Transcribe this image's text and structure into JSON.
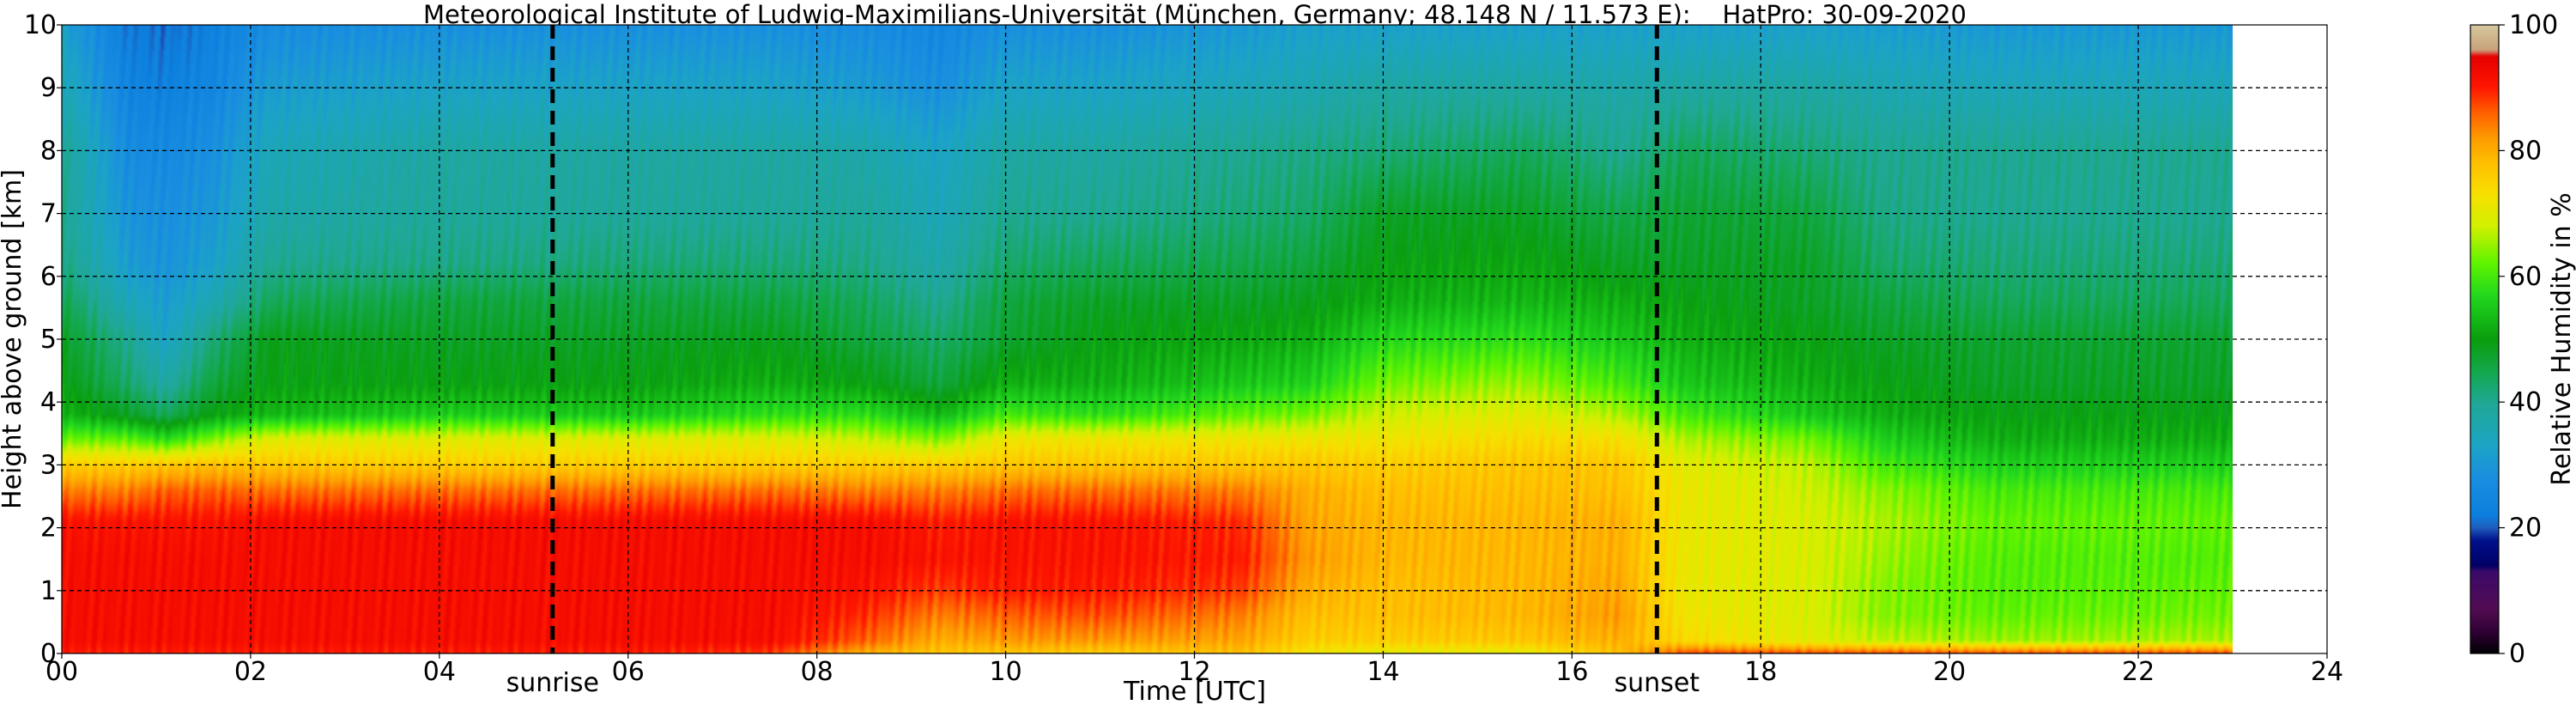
{
  "chart_data": {
    "type": "heatmap",
    "title": "Meteorological Institute of Ludwig-Maximilians-Universität (München, Germany; 48.148 N / 11.573 E):    HatPro: 30-09-2020",
    "xlabel": "Time [UTC]",
    "ylabel": "Height above ground [km]",
    "colorbar_label": "Relative Humidity in %",
    "xlim": [
      0,
      24
    ],
    "ylim": [
      0,
      10
    ],
    "data_xlim": [
      0,
      23
    ],
    "clim": [
      0,
      100
    ],
    "grid": true,
    "x_ticks": [
      "00",
      "02",
      "04",
      "06",
      "08",
      "10",
      "12",
      "14",
      "16",
      "18",
      "20",
      "22",
      "24"
    ],
    "x_tick_values": [
      0,
      2,
      4,
      6,
      8,
      10,
      12,
      14,
      16,
      18,
      20,
      22,
      24
    ],
    "y_ticks": [
      "0",
      "1",
      "2",
      "3",
      "4",
      "5",
      "6",
      "7",
      "8",
      "9",
      "10"
    ],
    "colorbar_ticks": [
      "0",
      "20",
      "40",
      "60",
      "80",
      "100"
    ],
    "colorbar_tick_values": [
      0,
      20,
      40,
      60,
      80,
      100
    ],
    "events": [
      {
        "label": "sunrise",
        "time_utc": 5.2
      },
      {
        "label": "sunset",
        "time_utc": 16.9
      }
    ],
    "colormap": [
      {
        "v": 0,
        "color": "#000000"
      },
      {
        "v": 3,
        "color": "#2a0030"
      },
      {
        "v": 7,
        "color": "#520b52"
      },
      {
        "v": 13,
        "color": "#3c0a6a"
      },
      {
        "v": 14,
        "color": "#000066"
      },
      {
        "v": 18,
        "color": "#00108c"
      },
      {
        "v": 20,
        "color": "#1f5ebd"
      },
      {
        "v": 22,
        "color": "#0c7fde"
      },
      {
        "v": 28,
        "color": "#1a8fe0"
      },
      {
        "v": 33,
        "color": "#1ca4c6"
      },
      {
        "v": 40,
        "color": "#20a895"
      },
      {
        "v": 45,
        "color": "#13a84a"
      },
      {
        "v": 50,
        "color": "#0a9e0f"
      },
      {
        "v": 57,
        "color": "#22d81e"
      },
      {
        "v": 62,
        "color": "#5ef400"
      },
      {
        "v": 68,
        "color": "#d2f000"
      },
      {
        "v": 73,
        "color": "#f7e000"
      },
      {
        "v": 78,
        "color": "#ffc000"
      },
      {
        "v": 82,
        "color": "#fd9c00"
      },
      {
        "v": 86,
        "color": "#ff6000"
      },
      {
        "v": 90,
        "color": "#ff1700"
      },
      {
        "v": 95,
        "color": "#e60000"
      },
      {
        "v": 96,
        "color": "#c9a27a"
      },
      {
        "v": 100,
        "color": "#d7c8a0"
      }
    ],
    "profile_heights_km": [
      0,
      0.2,
      0.6,
      1.0,
      1.5,
      2.1,
      2.6,
      3.0,
      3.4,
      3.8,
      4.3,
      5.0,
      5.6,
      6.2,
      7.0,
      8.0,
      9.0,
      10.0
    ],
    "profiles": [
      {
        "t": 0.0,
        "rh": [
          90,
          92,
          92,
          92,
          92,
          91,
          84,
          76,
          63,
          53,
          50,
          48,
          45,
          42,
          40,
          40,
          36,
          32
        ]
      },
      {
        "t": 0.7,
        "rh": [
          90,
          92,
          92,
          92,
          92,
          91,
          84,
          76,
          62,
          48,
          43,
          40,
          35,
          31,
          29,
          27,
          24,
          22
        ]
      },
      {
        "t": 1.1,
        "rh": [
          90,
          92,
          92,
          92,
          92,
          91,
          86,
          77,
          58,
          44,
          38,
          33,
          31,
          29,
          28,
          26,
          23,
          21
        ]
      },
      {
        "t": 1.6,
        "rh": [
          90,
          92,
          92,
          92,
          92,
          91,
          86,
          78,
          64,
          50,
          46,
          42,
          36,
          32,
          30,
          28,
          25,
          23
        ]
      },
      {
        "t": 2.2,
        "rh": [
          90,
          92,
          92,
          92,
          92,
          92,
          85,
          77,
          70,
          53,
          50,
          49,
          44,
          40,
          37,
          35,
          31,
          27
        ]
      },
      {
        "t": 4.0,
        "rh": [
          90,
          92,
          92,
          92,
          92,
          92,
          85,
          76,
          70,
          56,
          50,
          48,
          46,
          41,
          39,
          38,
          33,
          28
        ]
      },
      {
        "t": 6.0,
        "rh": [
          90,
          92,
          92,
          92,
          92,
          92,
          85,
          76,
          70,
          55,
          50,
          48,
          46,
          42,
          39,
          38,
          33,
          28
        ]
      },
      {
        "t": 7.5,
        "rh": [
          88,
          92,
          92,
          92,
          92,
          92,
          85,
          76,
          70,
          58,
          52,
          49,
          46,
          42,
          39,
          38,
          33,
          28
        ]
      },
      {
        "t": 8.5,
        "rh": [
          80,
          86,
          89,
          91,
          92,
          92,
          84,
          76,
          68,
          58,
          50,
          46,
          44,
          41,
          39,
          37,
          31,
          27
        ]
      },
      {
        "t": 9.3,
        "rh": [
          77,
          80,
          84,
          88,
          91,
          90,
          84,
          76,
          64,
          53,
          46,
          43,
          40,
          37,
          35,
          33,
          28,
          25
        ]
      },
      {
        "t": 10.0,
        "rh": [
          77,
          82,
          86,
          90,
          91,
          91,
          85,
          77,
          72,
          60,
          52,
          47,
          46,
          43,
          40,
          38,
          33,
          28
        ]
      },
      {
        "t": 11.0,
        "rh": [
          76,
          82,
          87,
          90,
          91,
          91,
          85,
          77,
          72,
          58,
          52,
          50,
          48,
          44,
          40,
          38,
          33,
          28
        ]
      },
      {
        "t": 12.5,
        "rh": [
          78,
          81,
          84,
          88,
          90,
          89,
          84,
          77,
          72,
          62,
          55,
          51,
          48,
          45,
          42,
          40,
          35,
          30
        ]
      },
      {
        "t": 13.2,
        "rh": [
          72,
          76,
          78,
          80,
          82,
          81,
          80,
          77,
          72,
          63,
          56,
          52,
          49,
          46,
          43,
          41,
          36,
          32
        ]
      },
      {
        "t": 14.0,
        "rh": [
          70,
          76,
          78,
          78,
          79,
          79,
          78,
          76,
          72,
          68,
          63,
          57,
          52,
          50,
          48,
          42,
          38,
          32
        ]
      },
      {
        "t": 15.5,
        "rh": [
          70,
          77,
          79,
          79,
          79,
          79,
          78,
          77,
          74,
          70,
          65,
          58,
          53,
          51,
          48,
          44,
          38,
          32
        ]
      },
      {
        "t": 16.5,
        "rh": [
          78,
          80,
          82,
          81,
          80,
          80,
          78,
          77,
          73,
          66,
          60,
          55,
          52,
          48,
          45,
          40,
          37,
          32
        ]
      },
      {
        "t": 17.2,
        "rh": [
          88,
          74,
          72,
          71,
          71,
          71,
          71,
          70,
          66,
          60,
          55,
          52,
          50,
          48,
          47,
          44,
          38,
          32
        ]
      },
      {
        "t": 18.5,
        "rh": [
          88,
          70,
          69,
          69,
          69,
          69,
          68,
          67,
          63,
          55,
          52,
          50,
          48,
          48,
          46,
          42,
          38,
          32
        ]
      },
      {
        "t": 19.3,
        "rh": [
          88,
          67,
          64,
          64,
          65,
          66,
          64,
          60,
          56,
          52,
          50,
          48,
          46,
          43,
          41,
          40,
          36,
          31
        ]
      },
      {
        "t": 20.5,
        "rh": [
          88,
          65,
          62,
          61,
          61,
          62,
          60,
          56,
          52,
          50,
          48,
          47,
          44,
          42,
          40,
          40,
          35,
          30
        ]
      },
      {
        "t": 23.0,
        "rh": [
          88,
          66,
          63,
          62,
          61,
          62,
          60,
          56,
          52,
          50,
          48,
          47,
          44,
          42,
          40,
          40,
          35,
          30
        ]
      }
    ]
  }
}
